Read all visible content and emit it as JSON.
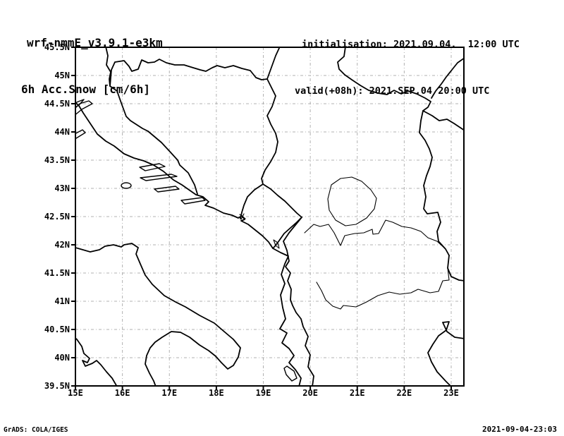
{
  "header": {
    "model": "wrf-nmmE_v3.9.1-e3km",
    "field": "6h Acc.Snow [cm/6h]",
    "init": "initialisation: 2021.09.04.  12:00 UTC",
    "valid": "valid(+08h): 2021.SEP.04 20:00 UTC"
  },
  "map": {
    "lat_ticks": [
      "45.5N",
      "45N",
      "44.5N",
      "44N",
      "43.5N",
      "43N",
      "42.5N",
      "42N",
      "41.5N",
      "41N",
      "40.5N",
      "40N",
      "39.5N"
    ],
    "lon_ticks": [
      "15E",
      "16E",
      "17E",
      "18E",
      "19E",
      "20E",
      "21E",
      "22E",
      "23E"
    ],
    "lat_range_deg": [
      39.5,
      45.5
    ],
    "lon_range_deg": [
      15,
      23.27
    ]
  },
  "footer": {
    "left": "GrADS: COLA/IGES",
    "right": "2021-09-04-23:03"
  },
  "colors": {
    "background": "#ffffff",
    "linework": "#000000",
    "grid": "#b0b0b0",
    "text": "#000000"
  }
}
